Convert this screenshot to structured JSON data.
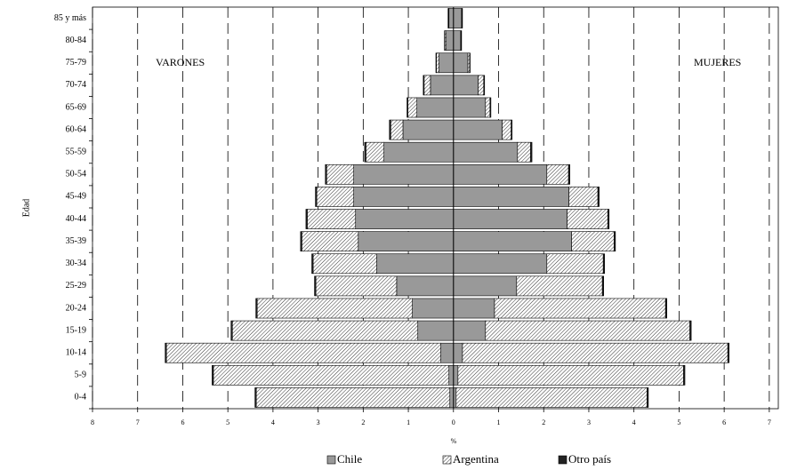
{
  "chart_data": {
    "type": "pyramid",
    "y_label": "Edad",
    "x_label": "%",
    "side_labels": {
      "varones": "VARONES",
      "mujeres": "MUJERES"
    },
    "categories": [
      "0-4",
      "5-9",
      "10-14",
      "15-19",
      "20-24",
      "25-29",
      "30-34",
      "35-39",
      "40-44",
      "45-49",
      "50-54",
      "55-59",
      "60-64",
      "65-69",
      "70-74",
      "75-79",
      "80-84",
      "85 y más"
    ],
    "series": [
      {
        "name": "Chile",
        "color": "#999999",
        "hatch": false,
        "varones": [
          0.08,
          0.1,
          0.28,
          0.79,
          0.91,
          1.26,
          1.7,
          2.11,
          2.17,
          2.21,
          2.21,
          1.54,
          1.12,
          0.81,
          0.51,
          0.32,
          0.16,
          0.1
        ],
        "mujeres": [
          0.06,
          0.1,
          0.2,
          0.71,
          0.91,
          1.4,
          2.07,
          2.62,
          2.52,
          2.56,
          2.07,
          1.42,
          1.08,
          0.71,
          0.55,
          0.32,
          0.16,
          0.18
        ]
      },
      {
        "name": "Argentina",
        "color": "#ffffff",
        "hatch": true,
        "varones": [
          4.29,
          5.22,
          6.08,
          4.11,
          3.44,
          1.79,
          1.41,
          1.25,
          1.07,
          0.82,
          0.6,
          0.4,
          0.27,
          0.2,
          0.14,
          0.06,
          0.03,
          0.01
        ],
        "mujeres": [
          4.23,
          5.0,
          5.88,
          4.53,
          3.79,
          1.9,
          1.25,
          0.94,
          0.9,
          0.64,
          0.48,
          0.29,
          0.2,
          0.1,
          0.12,
          0.04,
          0.01,
          0.01
        ]
      },
      {
        "name": "Otro país",
        "color": "#222222",
        "hatch": false,
        "varones": [
          0.03,
          0.03,
          0.03,
          0.03,
          0.03,
          0.03,
          0.03,
          0.03,
          0.03,
          0.03,
          0.03,
          0.03,
          0.03,
          0.02,
          0.02,
          0.01,
          0.01,
          0.01
        ],
        "mujeres": [
          0.03,
          0.03,
          0.03,
          0.03,
          0.03,
          0.03,
          0.03,
          0.03,
          0.03,
          0.03,
          0.03,
          0.03,
          0.02,
          0.02,
          0.02,
          0.01,
          0.01,
          0.01
        ]
      }
    ],
    "xlim": [
      -8,
      7.2
    ],
    "xticks": [
      {
        "value": -8,
        "label": "8"
      },
      {
        "value": -7,
        "label": "7"
      },
      {
        "value": -6,
        "label": "6"
      },
      {
        "value": -5,
        "label": "5"
      },
      {
        "value": -4,
        "label": "4"
      },
      {
        "value": -3,
        "label": "3"
      },
      {
        "value": -2,
        "label": "2"
      },
      {
        "value": -1,
        "label": "1"
      },
      0,
      1,
      2,
      3,
      4,
      5,
      6,
      7
    ],
    "grid": true
  }
}
